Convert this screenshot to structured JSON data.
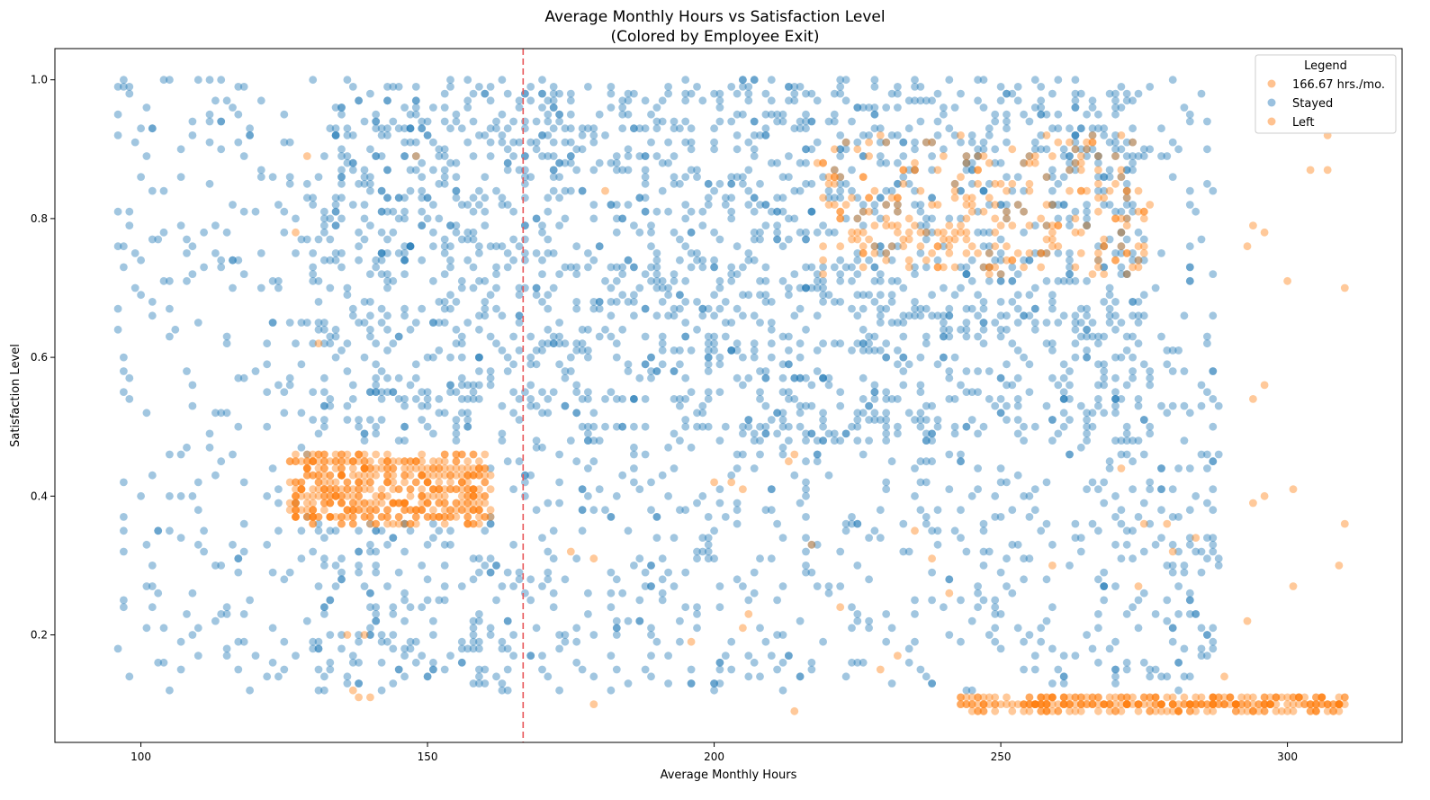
{
  "chart_data": {
    "type": "scatter",
    "title": "Average Monthly Hours vs Satisfaction Level",
    "subtitle": "(Colored by Employee Exit)",
    "xlabel": "Average Monthly Hours",
    "ylabel": "Satisfaction Level",
    "xlim": [
      85,
      320
    ],
    "ylim": [
      0.045,
      1.045
    ],
    "xticks": [
      100,
      150,
      200,
      250,
      300
    ],
    "yticks": [
      0.2,
      0.4,
      0.6,
      0.8,
      1.0
    ],
    "xtick_labels": [
      "100",
      "150",
      "200",
      "250",
      "300"
    ],
    "ytick_labels": [
      "0.2",
      "0.4",
      "0.6",
      "0.8",
      "1.0"
    ],
    "grid": false,
    "reference_line": {
      "x": 166.67,
      "color": "#e8575a",
      "style": "dashed"
    },
    "legend": {
      "title": "Legend",
      "placement": "top-right",
      "entries": [
        {
          "label": "166.67 hrs./mo.",
          "color": "#ffbb84"
        },
        {
          "label": "Stayed",
          "color": "#8fbadb"
        },
        {
          "label": "Left",
          "color": "#ffbb84"
        }
      ]
    },
    "series": [
      {
        "name": "Stayed",
        "color": "#1f77b4",
        "clusters": [
          {
            "x": [
              130,
              276
            ],
            "y": [
              0.48,
              1.0
            ],
            "n": 1900
          },
          {
            "x": [
              160,
              288
            ],
            "y": [
              0.12,
              0.48
            ],
            "n": 520
          },
          {
            "x": [
              96,
              130
            ],
            "y": [
              0.12,
              1.0
            ],
            "n": 230
          },
          {
            "x": [
              130,
              160
            ],
            "y": [
              0.12,
              0.36
            ],
            "n": 150
          },
          {
            "x": [
              276,
              288
            ],
            "y": [
              0.15,
              0.95
            ],
            "n": 70
          }
        ],
        "points": [
          [
            96,
            0.99
          ],
          [
            101,
            0.96
          ],
          [
            104,
            1.0
          ],
          [
            105,
            1.0
          ],
          [
            112,
            1.0
          ],
          [
            118,
            0.99
          ],
          [
            130,
            1.0
          ],
          [
            282,
            0.96
          ],
          [
            283,
            0.95
          ],
          [
            285,
            0.98
          ],
          [
            280,
            1.0
          ],
          [
            276,
            0.99
          ],
          [
            101,
            0.89
          ],
          [
            96,
            0.92
          ],
          [
            104,
            0.84
          ],
          [
            283,
            0.82
          ],
          [
            287,
            0.72
          ],
          [
            286,
            0.63
          ],
          [
            287,
            0.58
          ],
          [
            286,
            0.55
          ],
          [
            287,
            0.45
          ],
          [
            287,
            0.34
          ],
          [
            287,
            0.18
          ],
          [
            286,
            0.17
          ],
          [
            283,
            0.14
          ]
        ]
      },
      {
        "name": "Left",
        "color": "#ff7f0e",
        "clusters": [
          {
            "x": [
              126,
              161
            ],
            "y": [
              0.36,
              0.46
            ],
            "n": 470
          },
          {
            "x": [
              218,
              276
            ],
            "y": [
              0.72,
              0.92
            ],
            "n": 260
          },
          {
            "x": [
              243,
              310
            ],
            "y": [
              0.09,
              0.11
            ],
            "n": 320
          }
        ],
        "points": [
          [
            307,
            0.92
          ],
          [
            304,
            0.87
          ],
          [
            307,
            0.87
          ],
          [
            294,
            0.79
          ],
          [
            296,
            0.78
          ],
          [
            293,
            0.76
          ],
          [
            300,
            0.71
          ],
          [
            310,
            0.7
          ],
          [
            296,
            0.56
          ],
          [
            294,
            0.54
          ],
          [
            301,
            0.41
          ],
          [
            296,
            0.4
          ],
          [
            294,
            0.39
          ],
          [
            310,
            0.36
          ],
          [
            309,
            0.3
          ],
          [
            301,
            0.27
          ],
          [
            293,
            0.22
          ],
          [
            289,
            0.14
          ],
          [
            179,
            0.1
          ],
          [
            214,
            0.09
          ],
          [
            137,
            0.12
          ],
          [
            138,
            0.11
          ],
          [
            140,
            0.11
          ],
          [
            136,
            0.2
          ],
          [
            139,
            0.2
          ],
          [
            129,
            0.89
          ],
          [
            127,
            0.78
          ],
          [
            131,
            0.62
          ],
          [
            148,
            0.89
          ],
          [
            181,
            0.84
          ],
          [
            226,
            0.86
          ],
          [
            214,
            0.46
          ],
          [
            213,
            0.45
          ],
          [
            205,
            0.41
          ],
          [
            203,
            0.42
          ],
          [
            200,
            0.42
          ],
          [
            175,
            0.32
          ],
          [
            179,
            0.31
          ],
          [
            217,
            0.33
          ],
          [
            235,
            0.35
          ],
          [
            238,
            0.31
          ],
          [
            206,
            0.23
          ],
          [
            205,
            0.21
          ],
          [
            222,
            0.24
          ],
          [
            196,
            0.19
          ],
          [
            241,
            0.26
          ],
          [
            232,
            0.17
          ],
          [
            229,
            0.15
          ],
          [
            275,
            0.36
          ],
          [
            279,
            0.36
          ],
          [
            284,
            0.34
          ],
          [
            280,
            0.32
          ],
          [
            271,
            0.44
          ],
          [
            259,
            0.3
          ],
          [
            274,
            0.27
          ]
        ]
      }
    ]
  }
}
